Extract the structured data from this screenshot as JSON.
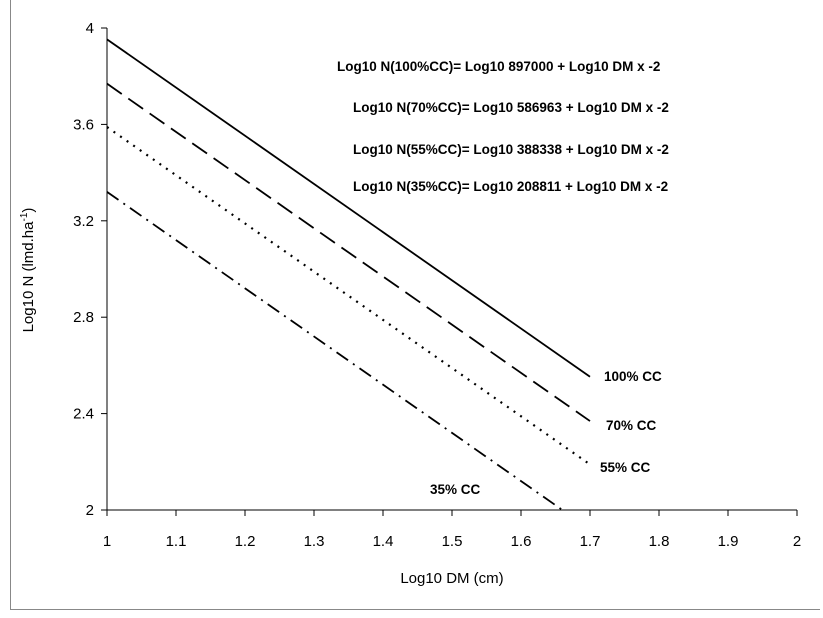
{
  "chart_data": {
    "type": "line",
    "title": "",
    "xlabel": "Log10 DM (cm)",
    "ylabel_main": "Log10 N (lmd.ha",
    "ylabel_sup": "-1",
    "ylabel_close": ")",
    "xlim": [
      1,
      2
    ],
    "ylim": [
      2,
      4
    ],
    "x_ticks": [
      "1",
      "1.1",
      "1.2",
      "1.3",
      "1.4",
      "1.5",
      "1.6",
      "1.7",
      "1.8",
      "1.9",
      "2"
    ],
    "y_ticks": [
      "2",
      "2.4",
      "2.8",
      "3.2",
      "3.6",
      "4"
    ],
    "grid": false,
    "equations": [
      "Log10 N(100%CC)= Log10 897000 + Log10 DM x -2",
      "Log10 N(70%CC)= Log10 586963 + Log10 DM x -2",
      "Log10 N(55%CC)= Log10 388338 + Log10 DM x -2",
      "Log10 N(35%CC)= Log10 208811 + Log10 DM x -2"
    ],
    "series": [
      {
        "name": "100% CC",
        "style": "solid",
        "x": [
          1,
          1.7
        ],
        "y": [
          3.953,
          2.553
        ]
      },
      {
        "name": "70% CC",
        "style": "dashed",
        "x": [
          1,
          1.7
        ],
        "y": [
          3.769,
          2.369
        ]
      },
      {
        "name": "55% CC",
        "style": "dotted",
        "x": [
          1,
          1.7
        ],
        "y": [
          3.589,
          2.189
        ]
      },
      {
        "name": "35% CC",
        "style": "dashdot",
        "x": [
          1,
          1.66
        ],
        "y": [
          3.32,
          2.0
        ]
      }
    ],
    "colors": {
      "line": "#000000",
      "axis": "#000000"
    }
  }
}
